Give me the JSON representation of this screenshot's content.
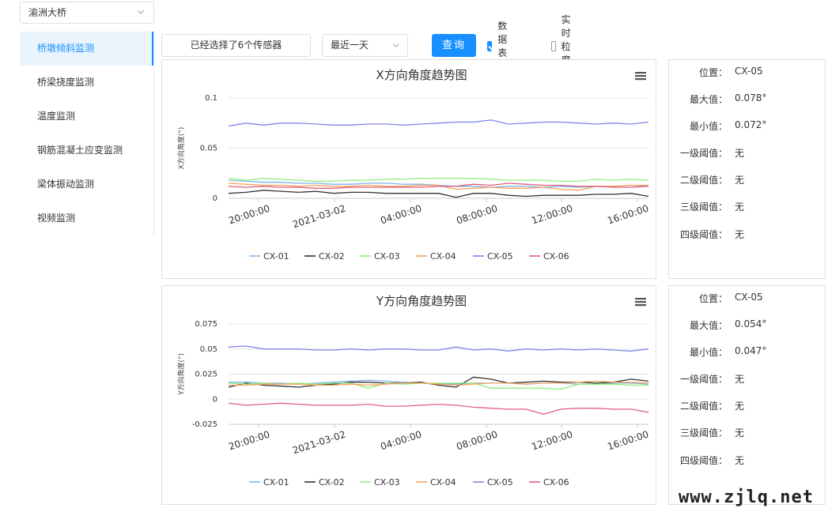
{
  "bridge_selector": {
    "value": "渝洲大桥"
  },
  "sidebar": {
    "items": [
      {
        "label": "桥墩倾斜监测",
        "active": true
      },
      {
        "label": "桥梁挠度监测"
      },
      {
        "label": "温度监测"
      },
      {
        "label": "钢筋混凝土应变监测"
      },
      {
        "label": "梁体振动监测"
      },
      {
        "label": "视频监测"
      }
    ]
  },
  "toolbar": {
    "sensor_button": "已经选择了6个传感器",
    "time_range": "最近一天",
    "query_label": "查询",
    "table_checkbox": {
      "label": "数据表格",
      "checked": true
    },
    "realtime_checkbox": {
      "label": "实时粒度ⓘ",
      "checked": false
    }
  },
  "colors": {
    "accent": "#1890ff"
  },
  "chart_data": [
    {
      "type": "line",
      "title": "X方向角度趋势图",
      "ylabel": "X方向角度(°)",
      "ylim": [
        0,
        0.1
      ],
      "yticks": [
        "0.1",
        "0.05",
        "0"
      ],
      "xticks": [
        "20:00:00",
        "2021-03-02",
        "04:00:00",
        "08:00:00",
        "12:00:00",
        "16:00:00"
      ],
      "series": [
        {
          "name": "CX-01",
          "color": "#7cb5ec",
          "values": [
            0.018,
            0.017,
            0.016,
            0.016,
            0.015,
            0.015,
            0.014,
            0.014,
            0.015,
            0.015,
            0.014,
            0.014,
            0.013,
            0.012,
            0.012,
            0.011,
            0.012,
            0.012,
            0.011,
            0.012,
            0.011,
            0.012,
            0.012,
            0.013,
            0.012
          ]
        },
        {
          "name": "CX-02",
          "color": "#333333",
          "values": [
            0.005,
            0.006,
            0.008,
            0.007,
            0.006,
            0.007,
            0.005,
            0.006,
            0.006,
            0.005,
            0.005,
            0.005,
            0.005,
            0.001,
            0.005,
            0.005,
            0.003,
            0.002,
            0.003,
            0.003,
            0.003,
            0.004,
            0.004,
            0.005,
            0.002
          ]
        },
        {
          "name": "CX-03",
          "color": "#90ed7d",
          "values": [
            0.02,
            0.018,
            0.02,
            0.019,
            0.018,
            0.017,
            0.017,
            0.018,
            0.018,
            0.019,
            0.019,
            0.02,
            0.02,
            0.02,
            0.02,
            0.019,
            0.018,
            0.018,
            0.018,
            0.017,
            0.017,
            0.019,
            0.018,
            0.019,
            0.018
          ]
        },
        {
          "name": "CX-04",
          "color": "#f7a35c",
          "values": [
            0.015,
            0.014,
            0.013,
            0.013,
            0.012,
            0.013,
            0.012,
            0.012,
            0.013,
            0.012,
            0.012,
            0.013,
            0.013,
            0.009,
            0.01,
            0.011,
            0.01,
            0.01,
            0.011,
            0.009,
            0.008,
            0.012,
            0.012,
            0.013,
            0.013
          ]
        },
        {
          "name": "CX-05",
          "color": "#8085e9",
          "values": [
            0.072,
            0.075,
            0.073,
            0.075,
            0.075,
            0.074,
            0.073,
            0.073,
            0.074,
            0.074,
            0.073,
            0.074,
            0.075,
            0.076,
            0.076,
            0.078,
            0.074,
            0.075,
            0.076,
            0.076,
            0.075,
            0.074,
            0.075,
            0.074,
            0.076
          ]
        },
        {
          "name": "CX-06",
          "color": "#e06080",
          "values": [
            0.012,
            0.011,
            0.012,
            0.011,
            0.011,
            0.01,
            0.01,
            0.011,
            0.011,
            0.011,
            0.011,
            0.011,
            0.012,
            0.012,
            0.014,
            0.013,
            0.015,
            0.014,
            0.013,
            0.013,
            0.012,
            0.012,
            0.011,
            0.011,
            0.012
          ]
        }
      ]
    },
    {
      "type": "line",
      "title": "Y方向角度趋势图",
      "ylabel": "Y方向角度(°)",
      "ylim": [
        -0.025,
        0.075
      ],
      "yticks": [
        "0.075",
        "0.05",
        "0.025",
        "0",
        "-0.025"
      ],
      "xticks": [
        "20:00:00",
        "2021-03-02",
        "04:00:00",
        "08:00:00",
        "12:00:00",
        "16:00:00"
      ],
      "series": [
        {
          "name": "CX-01",
          "color": "#7cb5ec",
          "values": [
            0.017,
            0.017,
            0.016,
            0.016,
            0.015,
            0.016,
            0.017,
            0.018,
            0.019,
            0.018,
            0.017,
            0.016,
            0.015,
            0.015,
            0.016,
            0.016,
            0.016,
            0.015,
            0.016,
            0.016,
            0.015,
            0.015,
            0.016,
            0.016,
            0.015
          ]
        },
        {
          "name": "CX-02",
          "color": "#333333",
          "values": [
            0.012,
            0.016,
            0.014,
            0.013,
            0.012,
            0.014,
            0.015,
            0.017,
            0.017,
            0.016,
            0.016,
            0.017,
            0.014,
            0.012,
            0.022,
            0.02,
            0.016,
            0.017,
            0.018,
            0.017,
            0.017,
            0.016,
            0.017,
            0.02,
            0.018
          ]
        },
        {
          "name": "CX-03",
          "color": "#90ed7d",
          "values": [
            0.016,
            0.015,
            0.016,
            0.015,
            0.016,
            0.015,
            0.016,
            0.016,
            0.011,
            0.016,
            0.015,
            0.016,
            0.016,
            0.016,
            0.016,
            0.011,
            0.011,
            0.011,
            0.011,
            0.01,
            0.015,
            0.015,
            0.015,
            0.014,
            0.014
          ]
        },
        {
          "name": "CX-04",
          "color": "#f7a35c",
          "values": [
            0.014,
            0.014,
            0.015,
            0.015,
            0.015,
            0.014,
            0.014,
            0.015,
            0.014,
            0.015,
            0.016,
            0.016,
            0.015,
            0.014,
            0.015,
            0.016,
            0.016,
            0.015,
            0.016,
            0.016,
            0.017,
            0.018,
            0.017,
            0.017,
            0.016
          ]
        },
        {
          "name": "CX-05",
          "color": "#8085e9",
          "values": [
            0.052,
            0.053,
            0.05,
            0.05,
            0.05,
            0.049,
            0.049,
            0.05,
            0.049,
            0.05,
            0.05,
            0.049,
            0.049,
            0.052,
            0.049,
            0.05,
            0.048,
            0.05,
            0.049,
            0.05,
            0.049,
            0.05,
            0.049,
            0.048,
            0.05
          ]
        },
        {
          "name": "CX-06",
          "color": "#e06080",
          "values": [
            -0.004,
            -0.006,
            -0.005,
            -0.004,
            -0.005,
            -0.006,
            -0.006,
            -0.006,
            -0.005,
            -0.007,
            -0.007,
            -0.006,
            -0.005,
            -0.006,
            -0.008,
            -0.009,
            -0.01,
            -0.01,
            -0.015,
            -0.01,
            -0.009,
            -0.009,
            -0.01,
            -0.01,
            -0.013
          ]
        }
      ]
    }
  ],
  "info_panels": [
    {
      "rows": [
        {
          "label": "位置：",
          "value": "CX-05"
        },
        {
          "label": "最大值：",
          "value": "0.078°"
        },
        {
          "label": "最小值：",
          "value": "0.072°"
        },
        {
          "label": "一级阈值：",
          "value": "无"
        },
        {
          "label": "二级阈值：",
          "value": "无"
        },
        {
          "label": "三级阈值：",
          "value": "无"
        },
        {
          "label": "四级阈值：",
          "value": "无"
        }
      ]
    },
    {
      "rows": [
        {
          "label": "位置：",
          "value": "CX-05"
        },
        {
          "label": "最大值：",
          "value": "0.054°"
        },
        {
          "label": "最小值：",
          "value": "0.047°"
        },
        {
          "label": "一级阈值：",
          "value": "无"
        },
        {
          "label": "二级阈值：",
          "value": "无"
        },
        {
          "label": "三级阈值：",
          "value": "无"
        },
        {
          "label": "四级阈值：",
          "value": "无"
        }
      ]
    }
  ],
  "watermark": "www.zjlq.net"
}
